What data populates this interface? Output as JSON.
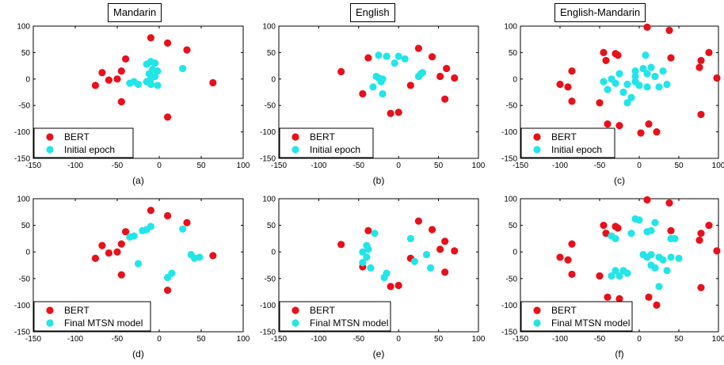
{
  "columns": [
    "Mandarin",
    "English",
    "English-Mandarin"
  ],
  "colors": {
    "bert": "#e8101a",
    "cyan": "#22e5e8"
  },
  "chart_data": [
    {
      "type": "scatter",
      "panel_label": "(a)",
      "xlim": [
        -150,
        100
      ],
      "ylim": [
        -150,
        100
      ],
      "xticks": [
        -150,
        -100,
        -50,
        0,
        50,
        100
      ],
      "yticks": [
        -150,
        -100,
        -50,
        0,
        50,
        100
      ],
      "legend_position": "bottom-left",
      "series": [
        {
          "name": "BERT",
          "color": "#e8101a",
          "points": [
            [
              -10,
              78
            ],
            [
              10,
              68
            ],
            [
              33,
              55
            ],
            [
              -40,
              38
            ],
            [
              -68,
              12
            ],
            [
              -45,
              15
            ],
            [
              -60,
              -2
            ],
            [
              -50,
              0
            ],
            [
              -76,
              -12
            ],
            [
              -45,
              -43
            ],
            [
              64,
              -7
            ],
            [
              10,
              -72
            ]
          ]
        },
        {
          "name": "Initial epoch",
          "color": "#22e5e8",
          "points": [
            [
              -10,
              33
            ],
            [
              -15,
              28
            ],
            [
              -5,
              30
            ],
            [
              28,
              20
            ],
            [
              -8,
              18
            ],
            [
              -2,
              15
            ],
            [
              -12,
              10
            ],
            [
              -5,
              5
            ],
            [
              -10,
              0
            ],
            [
              -15,
              -5
            ],
            [
              -30,
              -5
            ],
            [
              -25,
              -10
            ],
            [
              -10,
              -10
            ],
            [
              -2,
              -12
            ],
            [
              -35,
              -8
            ]
          ]
        }
      ]
    },
    {
      "type": "scatter",
      "panel_label": "(b)",
      "xlim": [
        -150,
        100
      ],
      "ylim": [
        -150,
        100
      ],
      "xticks": [
        -150,
        -100,
        -50,
        0,
        50,
        100
      ],
      "yticks": [
        -150,
        -100,
        -50,
        0,
        50,
        100
      ],
      "legend_position": "bottom-left",
      "series": [
        {
          "name": "BERT",
          "color": "#e8101a",
          "points": [
            [
              -72,
              14
            ],
            [
              -38,
              40
            ],
            [
              25,
              58
            ],
            [
              42,
              42
            ],
            [
              60,
              20
            ],
            [
              70,
              2
            ],
            [
              52,
              5
            ],
            [
              15,
              -12
            ],
            [
              58,
              -38
            ],
            [
              -45,
              -28
            ],
            [
              -10,
              -65
            ],
            [
              0,
              -63
            ]
          ]
        },
        {
          "name": "Initial epoch",
          "color": "#22e5e8",
          "points": [
            [
              -25,
              45
            ],
            [
              -15,
              43
            ],
            [
              0,
              43
            ],
            [
              8,
              38
            ],
            [
              -5,
              30
            ],
            [
              -28,
              5
            ],
            [
              -20,
              0
            ],
            [
              -22,
              -5
            ],
            [
              -32,
              -15
            ],
            [
              -20,
              -28
            ],
            [
              25,
              5
            ],
            [
              28,
              10
            ],
            [
              30,
              12
            ],
            [
              -25,
              2
            ]
          ]
        }
      ]
    },
    {
      "type": "scatter",
      "panel_label": "(c)",
      "xlim": [
        -150,
        100
      ],
      "ylim": [
        -150,
        100
      ],
      "xticks": [
        -150,
        -100,
        -50,
        0,
        50,
        100
      ],
      "yticks": [
        -150,
        -100,
        -50,
        0,
        50,
        100
      ],
      "legend_position": "bottom-left",
      "series": [
        {
          "name": "BERT",
          "color": "#e8101a",
          "points": [
            [
              10,
              98
            ],
            [
              38,
              92
            ],
            [
              88,
              50
            ],
            [
              -30,
              48
            ],
            [
              -27,
              45
            ],
            [
              -45,
              50
            ],
            [
              -42,
              35
            ],
            [
              40,
              40
            ],
            [
              78,
              35
            ],
            [
              76,
              22
            ],
            [
              98,
              2
            ],
            [
              -85,
              15
            ],
            [
              -100,
              -10
            ],
            [
              -90,
              -15
            ],
            [
              -85,
              -42
            ],
            [
              -50,
              -45
            ],
            [
              -40,
              -85
            ],
            [
              -25,
              -88
            ],
            [
              12,
              -85
            ],
            [
              2,
              -102
            ],
            [
              22,
              -100
            ],
            [
              78,
              -67
            ]
          ]
        },
        {
          "name": "Initial epoch",
          "color": "#22e5e8",
          "points": [
            [
              8,
              45
            ],
            [
              15,
              22
            ],
            [
              5,
              20
            ],
            [
              -5,
              15
            ],
            [
              10,
              10
            ],
            [
              20,
              5
            ],
            [
              -25,
              10
            ],
            [
              -35,
              0
            ],
            [
              -45,
              -5
            ],
            [
              -30,
              -8
            ],
            [
              -15,
              -10
            ],
            [
              -5,
              -5
            ],
            [
              0,
              -12
            ],
            [
              10,
              -15
            ],
            [
              25,
              -15
            ],
            [
              35,
              -10
            ],
            [
              -20,
              -25
            ],
            [
              -10,
              -35
            ],
            [
              -40,
              -20
            ],
            [
              -15,
              -45
            ],
            [
              -5,
              5
            ],
            [
              30,
              15
            ]
          ]
        }
      ]
    },
    {
      "type": "scatter",
      "panel_label": "(d)",
      "xlim": [
        -150,
        100
      ],
      "ylim": [
        -150,
        100
      ],
      "xticks": [
        -150,
        -100,
        -50,
        0,
        50,
        100
      ],
      "yticks": [
        -150,
        -100,
        -50,
        0,
        50,
        100
      ],
      "legend_position": "bottom-left",
      "series": [
        {
          "name": "BERT",
          "color": "#e8101a",
          "points": [
            [
              -10,
              78
            ],
            [
              10,
              68
            ],
            [
              33,
              55
            ],
            [
              -40,
              38
            ],
            [
              -68,
              12
            ],
            [
              -45,
              15
            ],
            [
              -60,
              -2
            ],
            [
              -50,
              0
            ],
            [
              -76,
              -12
            ],
            [
              -45,
              -43
            ],
            [
              64,
              -7
            ],
            [
              10,
              -72
            ]
          ]
        },
        {
          "name": "Final MTSN model",
          "color": "#22e5e8",
          "points": [
            [
              -10,
              48
            ],
            [
              -15,
              42
            ],
            [
              -20,
              40
            ],
            [
              28,
              43
            ],
            [
              -30,
              30
            ],
            [
              -35,
              28
            ],
            [
              38,
              -5
            ],
            [
              42,
              -12
            ],
            [
              48,
              -10
            ],
            [
              -25,
              -22
            ],
            [
              15,
              -40
            ],
            [
              10,
              -48
            ]
          ]
        }
      ]
    },
    {
      "type": "scatter",
      "panel_label": "(e)",
      "xlim": [
        -150,
        100
      ],
      "ylim": [
        -150,
        100
      ],
      "xticks": [
        -150,
        -100,
        -50,
        0,
        50,
        100
      ],
      "yticks": [
        -150,
        -100,
        -50,
        0,
        50,
        100
      ],
      "legend_position": "bottom-left",
      "series": [
        {
          "name": "BERT",
          "color": "#e8101a",
          "points": [
            [
              -72,
              14
            ],
            [
              -38,
              40
            ],
            [
              25,
              58
            ],
            [
              42,
              42
            ],
            [
              58,
              20
            ],
            [
              70,
              2
            ],
            [
              52,
              5
            ],
            [
              15,
              -12
            ],
            [
              58,
              -38
            ],
            [
              -45,
              -28
            ],
            [
              -10,
              -65
            ],
            [
              0,
              -63
            ]
          ]
        },
        {
          "name": "Final MTSN model",
          "color": "#22e5e8",
          "points": [
            [
              -30,
              35
            ],
            [
              -40,
              12
            ],
            [
              -38,
              5
            ],
            [
              -45,
              0
            ],
            [
              -40,
              -10
            ],
            [
              -45,
              -20
            ],
            [
              -35,
              -30
            ],
            [
              -15,
              -40
            ],
            [
              -18,
              -48
            ],
            [
              15,
              25
            ],
            [
              35,
              -5
            ],
            [
              40,
              -30
            ],
            [
              20,
              -18
            ]
          ]
        }
      ]
    },
    {
      "type": "scatter",
      "panel_label": "(f)",
      "xlim": [
        -150,
        100
      ],
      "ylim": [
        -150,
        100
      ],
      "xticks": [
        -150,
        -100,
        -50,
        0,
        50,
        100
      ],
      "yticks": [
        -150,
        -100,
        -50,
        0,
        50,
        100
      ],
      "legend_position": "bottom-left",
      "series": [
        {
          "name": "BERT",
          "color": "#e8101a",
          "points": [
            [
              10,
              98
            ],
            [
              38,
              92
            ],
            [
              88,
              50
            ],
            [
              -30,
              48
            ],
            [
              -27,
              45
            ],
            [
              -45,
              50
            ],
            [
              -42,
              35
            ],
            [
              40,
              40
            ],
            [
              78,
              35
            ],
            [
              76,
              22
            ],
            [
              98,
              2
            ],
            [
              -85,
              15
            ],
            [
              -100,
              -10
            ],
            [
              -90,
              -15
            ],
            [
              -85,
              -42
            ],
            [
              -50,
              -45
            ],
            [
              -40,
              -85
            ],
            [
              -25,
              -88
            ],
            [
              12,
              -85
            ],
            [
              22,
              -100
            ],
            [
              78,
              -67
            ]
          ]
        },
        {
          "name": "Final MTSN model",
          "color": "#22e5e8",
          "points": [
            [
              -5,
              62
            ],
            [
              0,
              60
            ],
            [
              20,
              55
            ],
            [
              -35,
              30
            ],
            [
              -30,
              25
            ],
            [
              15,
              40
            ],
            [
              10,
              38
            ],
            [
              40,
              25
            ],
            [
              45,
              25
            ],
            [
              -10,
              35
            ],
            [
              15,
              -5
            ],
            [
              25,
              -10
            ],
            [
              30,
              -15
            ],
            [
              40,
              -10
            ],
            [
              50,
              -12
            ],
            [
              -20,
              -35
            ],
            [
              -30,
              -35
            ],
            [
              -15,
              -40
            ],
            [
              -35,
              -45
            ],
            [
              -25,
              -45
            ],
            [
              5,
              -5
            ],
            [
              10,
              -10
            ],
            [
              15,
              -25
            ],
            [
              20,
              -30
            ],
            [
              35,
              -35
            ],
            [
              25,
              -65
            ]
          ]
        }
      ]
    }
  ]
}
